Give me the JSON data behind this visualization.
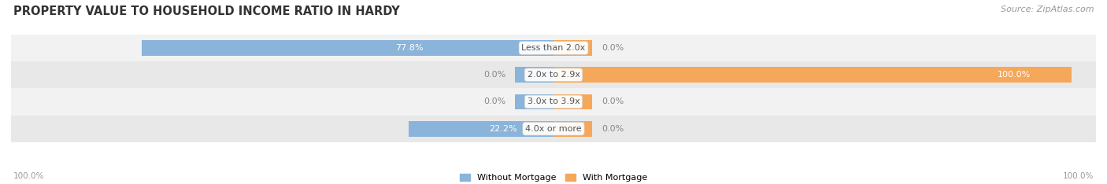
{
  "title": "PROPERTY VALUE TO HOUSEHOLD INCOME RATIO IN HARDY",
  "source": "Source: ZipAtlas.com",
  "categories": [
    "Less than 2.0x",
    "2.0x to 2.9x",
    "3.0x to 3.9x",
    "4.0x or more"
  ],
  "without_mortgage": [
    77.8,
    0.0,
    0.0,
    22.2
  ],
  "with_mortgage": [
    0.0,
    100.0,
    0.0,
    0.0
  ],
  "color_without": "#8ab4d9",
  "color_with": "#f5a85a",
  "color_without_stub": "#c5d9ee",
  "color_with_stub": "#fad4aa",
  "row_bg_even": "#f2f2f2",
  "row_bg_odd": "#e8e8e8",
  "text_color_white": "#ffffff",
  "text_color_dark": "#555555",
  "text_color_label": "#888888",
  "axis_label_left": "100.0%",
  "axis_label_right": "100.0%",
  "legend_without": "Without Mortgage",
  "legend_with": "With Mortgage",
  "title_fontsize": 10.5,
  "source_fontsize": 8,
  "bar_height": 0.58,
  "stub_size": 8.0,
  "max_val": 100.0
}
